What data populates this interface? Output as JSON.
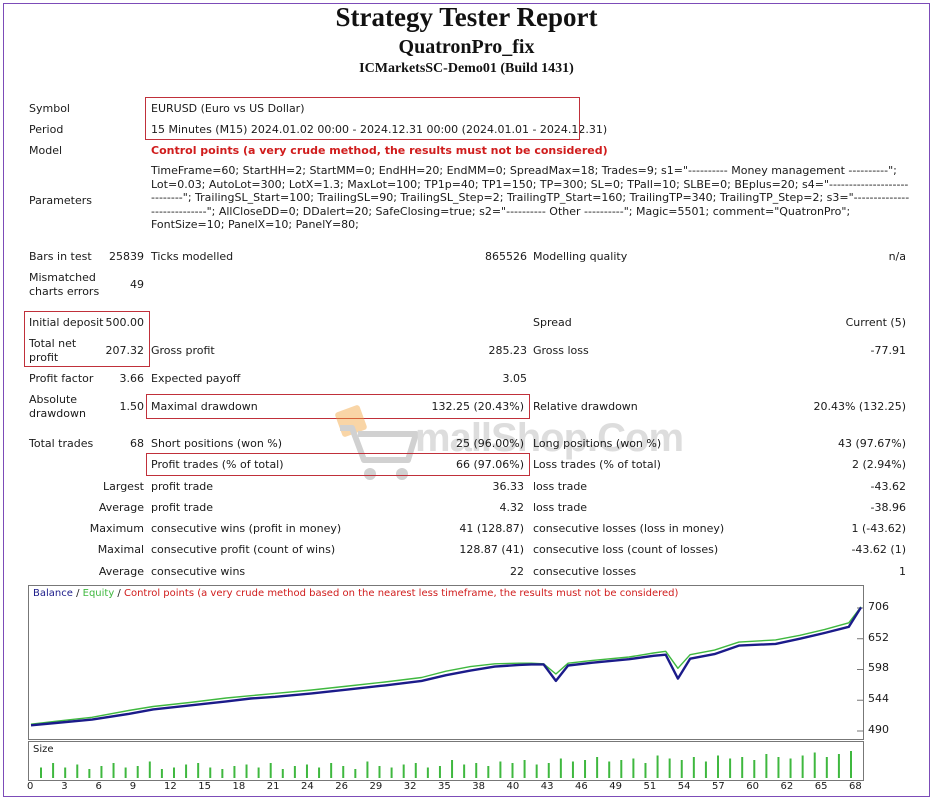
{
  "header": {
    "title": "Strategy Tester Report",
    "expert": "QuatronPro_fix",
    "server": "ICMarketsSC-Demo01 (Build 1431)"
  },
  "info": {
    "symbol_label": "Symbol",
    "symbol_value": "EURUSD (Euro vs US Dollar)",
    "period_label": "Period",
    "period_value": "15 Minutes (M15) 2024.01.02 00:00 - 2024.12.31 00:00 (2024.01.01 - 2024.12.31)",
    "model_label": "Model",
    "model_value": "Control points (a very crude method, the results must not be considered)",
    "parameters_label": "Parameters",
    "parameters_value": "TimeFrame=60; StartHH=2; StartMM=0; EndHH=20; EndMM=0; SpreadMax=18; Trades=9; s1=\"---------- Money management ----------\"; Lot=0.03; AutoLot=300; LotX=1.3; MaxLot=100; TP1p=40; TP1=150; TP=300; SL=0; TPall=10; SLBE=0; BEplus=20; s4=\"----------------------------\"; TrailingSL_Start=100; TrailingSL=90; TrailingSL_Step=2; TrailingTP_Start=160; TrailingTP=340; TrailingTP_Step=2; s3=\"----------------------------\"; AllCloseDD=0; DDalert=20; SafeClosing=true; s2=\"---------- Other ----------\"; Magic=5501; comment=\"QuatronPro\"; FontSize=10; PanelX=10; PanelY=80;"
  },
  "stats": {
    "bars_label": "Bars in test",
    "bars_value": "25839",
    "ticks_label": "Ticks modelled",
    "ticks_value": "865526",
    "quality_label": "Modelling quality",
    "quality_value": "n/a",
    "mismatch_label_1": "Mismatched",
    "mismatch_label_2": "charts errors",
    "mismatch_value": "49",
    "deposit_label": "Initial deposit",
    "deposit_value": "500.00",
    "spread_label": "Spread",
    "spread_value": "Current (5)",
    "netprofit_label_1": "Total net",
    "netprofit_label_2": "profit",
    "netprofit_value": "207.32",
    "grossprofit_label": "Gross profit",
    "grossprofit_value": "285.23",
    "grossloss_label": "Gross loss",
    "grossloss_value": "-77.91",
    "pf_label": "Profit factor",
    "pf_value": "3.66",
    "payoff_label": "Expected payoff",
    "payoff_value": "3.05",
    "absdd_label_1": "Absolute",
    "absdd_label_2": "drawdown",
    "absdd_value": "1.50",
    "maxdd_label": "Maximal drawdown",
    "maxdd_value": "132.25 (20.43%)",
    "reldd_label": "Relative drawdown",
    "reldd_value": "20.43% (132.25)",
    "trades_label": "Total trades",
    "trades_value": "68",
    "short_label": "Short positions (won %)",
    "short_value": "25 (96.00%)",
    "long_label": "Long positions (won %)",
    "long_value": "43 (97.67%)",
    "ptrades_label": "Profit trades (% of total)",
    "ptrades_value": "66 (97.06%)",
    "ltrades_label": "Loss trades (% of total)",
    "ltrades_value": "2 (2.94%)",
    "largest_label": "Largest",
    "largest_pt_label": "profit trade",
    "largest_pt_value": "36.33",
    "largest_lt_label": "loss trade",
    "largest_lt_value": "-43.62",
    "average_label": "Average",
    "average_pt_label": "profit trade",
    "average_pt_value": "4.32",
    "average_lt_label": "loss trade",
    "average_lt_value": "-38.96",
    "maximum_label": "Maximum",
    "max_cw_label": "consecutive wins (profit in money)",
    "max_cw_value": "41 (128.87)",
    "max_cl_label": "consecutive losses (loss in money)",
    "max_cl_value": "1 (-43.62)",
    "maximal_label": "Maximal",
    "mxl_cp_label": "consecutive profit (count of wins)",
    "mxl_cp_value": "128.87 (41)",
    "mxl_cl_label": "consecutive loss (count of losses)",
    "mxl_cl_value": "-43.62 (1)",
    "avg2_label": "Average",
    "avg_cw_label": "consecutive wins",
    "avg_cw_value": "22",
    "avg_cl_label": "consecutive losses",
    "avg_cl_value": "1"
  },
  "watermark": {
    "text": "mallShop.Com"
  },
  "chart_data": {
    "type": "line",
    "legend": {
      "balance": "Balance",
      "sep1": " / ",
      "equity": "Equity",
      "sep2": " / ",
      "note": "Control points (a very crude method based on the nearest less timeframe, the results must not be considered)"
    },
    "colors": {
      "balance": "#1b1b8a",
      "equity": "#3fb83f",
      "note": "#d01c1c"
    },
    "ylim": [
      490,
      720
    ],
    "xlim": [
      0,
      68
    ],
    "yticks": [
      "706",
      "652",
      "598",
      "544",
      "490"
    ],
    "xticks": [
      "0",
      "3",
      "6",
      "9",
      "12",
      "15",
      "18",
      "21",
      "24",
      "26",
      "29",
      "32",
      "35",
      "38",
      "40",
      "43",
      "46",
      "49",
      "51",
      "54",
      "57",
      "60",
      "62",
      "65",
      "68"
    ],
    "size_label": "Size",
    "series": [
      {
        "name": "Balance",
        "x": [
          0,
          2,
          5,
          8,
          10,
          13,
          16,
          18,
          20,
          23,
          26,
          29,
          32,
          34,
          36,
          38,
          40,
          41,
          42,
          43,
          44,
          46,
          49,
          51,
          52,
          53,
          54,
          56,
          58,
          61,
          63,
          65,
          67,
          68
        ],
        "y": [
          500,
          504,
          510,
          520,
          528,
          535,
          542,
          547,
          550,
          556,
          563,
          570,
          578,
          588,
          596,
          603,
          606,
          607,
          607,
          578,
          605,
          610,
          616,
          622,
          624,
          582,
          617,
          625,
          640,
          643,
          652,
          662,
          673,
          707
        ]
      },
      {
        "name": "Equity",
        "x": [
          0,
          2,
          5,
          8,
          10,
          13,
          16,
          18,
          20,
          23,
          26,
          29,
          32,
          34,
          36,
          38,
          40,
          41,
          42,
          43,
          44,
          46,
          49,
          51,
          52,
          53,
          54,
          56,
          58,
          61,
          63,
          65,
          67,
          68
        ],
        "y": [
          502,
          507,
          514,
          526,
          533,
          540,
          548,
          552,
          556,
          562,
          569,
          576,
          584,
          595,
          603,
          608,
          609,
          609,
          608,
          590,
          609,
          614,
          620,
          627,
          630,
          600,
          624,
          632,
          646,
          650,
          658,
          668,
          680,
          708
        ]
      }
    ],
    "sizes": [
      0.35,
      0.5,
      0.35,
      0.45,
      0.3,
      0.4,
      0.5,
      0.35,
      0.4,
      0.55,
      0.3,
      0.35,
      0.45,
      0.5,
      0.35,
      0.3,
      0.4,
      0.45,
      0.35,
      0.5,
      0.3,
      0.4,
      0.45,
      0.35,
      0.5,
      0.4,
      0.3,
      0.55,
      0.4,
      0.35,
      0.45,
      0.5,
      0.35,
      0.4,
      0.6,
      0.45,
      0.5,
      0.4,
      0.55,
      0.5,
      0.6,
      0.45,
      0.5,
      0.65,
      0.55,
      0.6,
      0.7,
      0.55,
      0.6,
      0.65,
      0.5,
      0.75,
      0.65,
      0.6,
      0.7,
      0.55,
      0.75,
      0.65,
      0.7,
      0.6,
      0.8,
      0.7,
      0.65,
      0.75,
      0.85,
      0.7,
      0.8,
      0.9
    ]
  }
}
